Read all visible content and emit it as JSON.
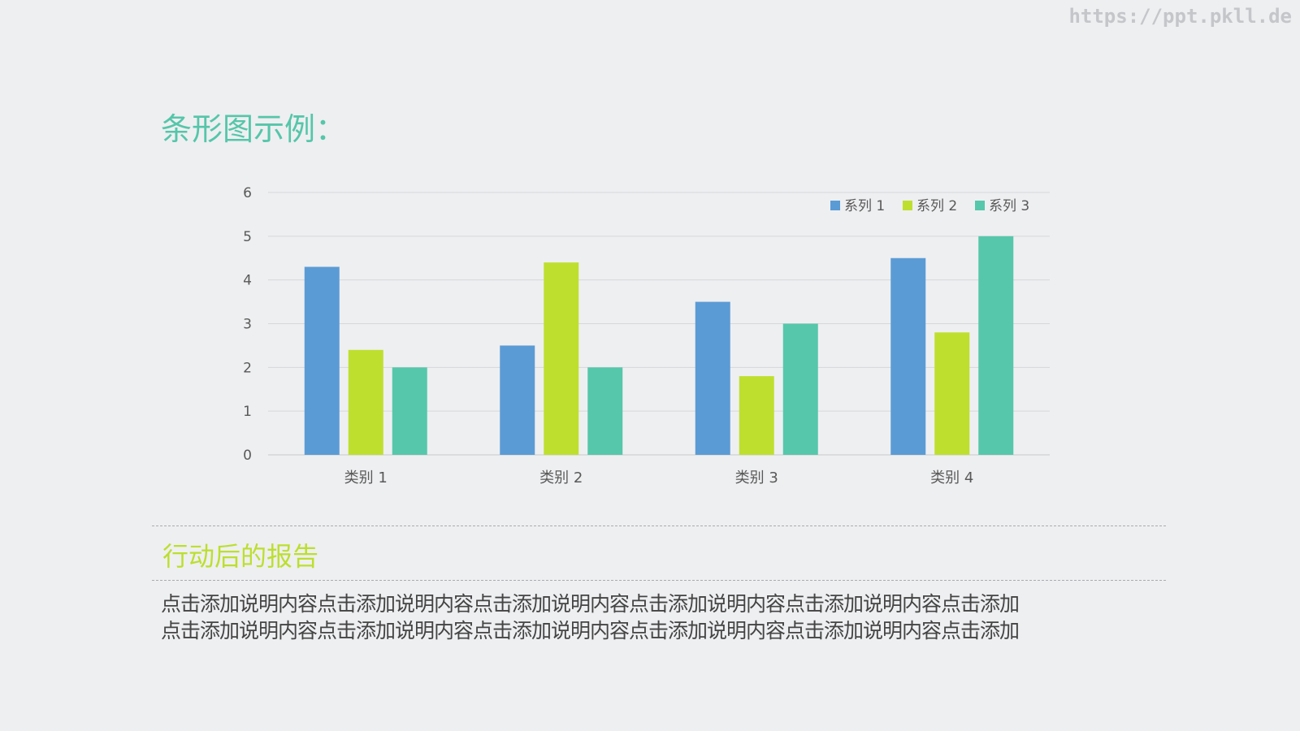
{
  "watermark": "https://ppt.pkll.de",
  "slide": {
    "title": "条形图示例：",
    "section_heading": "行动后的报告",
    "body_text": "点击添加说明内容点击添加说明内容点击添加说明内容点击添加说明内容点击添加说明内容点击添加\n点击添加说明内容点击添加说明内容点击添加说明内容点击添加说明内容点击添加说明内容点击添加"
  },
  "chart_data": {
    "type": "bar",
    "categories": [
      "类别 1",
      "类别 2",
      "类别 3",
      "类别 4"
    ],
    "series": [
      {
        "name": "系列 1",
        "values": [
          4.3,
          2.5,
          3.5,
          4.5
        ],
        "color": "#5b9bd5"
      },
      {
        "name": "系列 2",
        "values": [
          2.4,
          4.4,
          1.8,
          2.8
        ],
        "color": "#bfdf2f"
      },
      {
        "name": "系列 3",
        "values": [
          2,
          2,
          3,
          5
        ],
        "color": "#56c7aa"
      }
    ],
    "yticks": [
      "0",
      "1",
      "2",
      "3",
      "4",
      "5",
      "6"
    ],
    "ylim": [
      0,
      6
    ],
    "grid": true,
    "legend": "top-right"
  },
  "colors": {
    "title": "#55c6a9",
    "heading": "#bcdf2e",
    "gridline": "#d6d7da",
    "axis_text": "#595959"
  }
}
